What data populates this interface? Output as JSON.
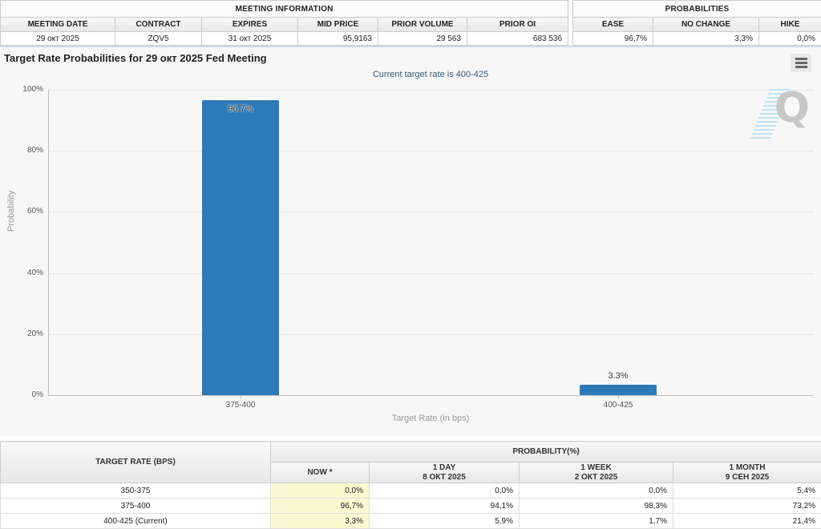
{
  "meeting_information": {
    "title": "MEETING INFORMATION",
    "columns": [
      "MEETING DATE",
      "CONTRACT",
      "EXPIRES",
      "MID PRICE",
      "PRIOR VOLUME",
      "PRIOR OI"
    ],
    "values": [
      "29 окт 2025",
      "ZQV5",
      "31 окт 2025",
      "95,9163",
      "29 563",
      "683 536"
    ]
  },
  "probabilities_summary": {
    "title": "PROBABILITIES",
    "columns": [
      "EASE",
      "NO CHANGE",
      "HIKE"
    ],
    "values": [
      "96,7%",
      "3,3%",
      "0,0%"
    ]
  },
  "chart_data": {
    "type": "bar",
    "title": "Target Rate Probabilities for 29 окт 2025 Fed Meeting",
    "subtitle": "Current target rate is 400-425",
    "categories": [
      "375-400",
      "400-425"
    ],
    "values": [
      96.7,
      3.3
    ],
    "value_labels": [
      "96.7%",
      "3.3%"
    ],
    "xlabel": "Target Rate (in bps)",
    "ylabel": "Probability",
    "ylim": [
      0,
      100
    ],
    "yticks": [
      "100%",
      "80%",
      "60%",
      "40%",
      "20%",
      "0%"
    ],
    "grid": "dotted horizontal",
    "legend": "none",
    "bar_color": "#2b7bb9"
  },
  "watermark": {
    "letter": "Q"
  },
  "bottom_table": {
    "corner_header": "TARGET RATE (BPS)",
    "group_header": "PROBABILITY(%)",
    "sub_headers": [
      {
        "title": "NOW *",
        "date": ""
      },
      {
        "title": "1 DAY",
        "date": "8 ОКТ 2025"
      },
      {
        "title": "1 WEEK",
        "date": "2 ОКТ 2025"
      },
      {
        "title": "1 MONTH",
        "date": "9 СЕН 2025"
      }
    ],
    "rows": [
      {
        "rate": "350-375",
        "now": "0,0%",
        "day": "0,0%",
        "week": "0,0%",
        "month": "5,4%"
      },
      {
        "rate": "375-400",
        "now": "96,7%",
        "day": "94,1%",
        "week": "98,3%",
        "month": "73,2%"
      },
      {
        "rate": "400-425 (Current)",
        "now": "3,3%",
        "day": "5,9%",
        "week": "1,7%",
        "month": "21,4%"
      }
    ]
  }
}
